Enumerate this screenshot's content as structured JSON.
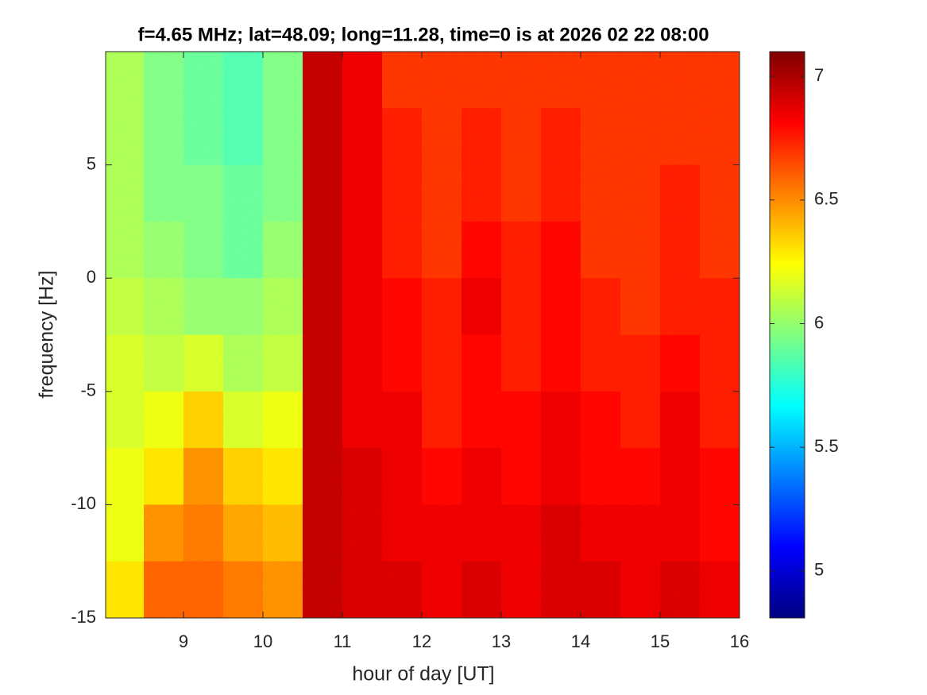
{
  "chart_data": {
    "type": "heatmap",
    "title": "f=4.65 MHz;  lat=48.09; long=11.28, time=0 is at 2026 02 22 08:00",
    "x_label": "hour of day [UT]",
    "y_label": "frequency [Hz]",
    "colormap": "jet",
    "x": [
      8.25,
      8.75,
      9.25,
      9.75,
      10.25,
      10.75,
      11.25,
      11.75,
      12.25,
      12.75,
      13.25,
      13.75,
      14.25,
      14.75,
      15.25,
      15.75
    ],
    "y": [
      8.75,
      6.25,
      3.75,
      1.25,
      -1.25,
      -3.75,
      -6.25,
      -8.75,
      -11.25,
      -13.75
    ],
    "z": [
      [
        6.05,
        5.95,
        5.9,
        5.85,
        5.95,
        6.95,
        6.85,
        6.7,
        6.7,
        6.7,
        6.7,
        6.7,
        6.7,
        6.7,
        6.7,
        6.7
      ],
      [
        6.05,
        5.95,
        5.9,
        5.85,
        5.95,
        6.95,
        6.85,
        6.75,
        6.7,
        6.75,
        6.7,
        6.75,
        6.7,
        6.7,
        6.7,
        6.7
      ],
      [
        6.05,
        5.95,
        5.95,
        5.9,
        5.95,
        6.95,
        6.85,
        6.75,
        6.7,
        6.75,
        6.7,
        6.75,
        6.7,
        6.7,
        6.75,
        6.7
      ],
      [
        6.05,
        6.0,
        5.95,
        5.9,
        6.0,
        6.95,
        6.85,
        6.75,
        6.7,
        6.8,
        6.75,
        6.8,
        6.7,
        6.7,
        6.75,
        6.7
      ],
      [
        6.1,
        6.05,
        6.0,
        6.0,
        6.05,
        6.95,
        6.85,
        6.8,
        6.75,
        6.85,
        6.75,
        6.8,
        6.75,
        6.7,
        6.75,
        6.75
      ],
      [
        6.15,
        6.1,
        6.15,
        6.05,
        6.1,
        6.95,
        6.85,
        6.8,
        6.75,
        6.8,
        6.75,
        6.8,
        6.75,
        6.75,
        6.8,
        6.75
      ],
      [
        6.15,
        6.2,
        6.35,
        6.15,
        6.2,
        6.95,
        6.85,
        6.85,
        6.75,
        6.8,
        6.8,
        6.85,
        6.8,
        6.75,
        6.85,
        6.75
      ],
      [
        6.2,
        6.3,
        6.5,
        6.35,
        6.3,
        6.95,
        6.9,
        6.85,
        6.8,
        6.85,
        6.8,
        6.85,
        6.8,
        6.8,
        6.85,
        6.8
      ],
      [
        6.2,
        6.5,
        6.55,
        6.45,
        6.4,
        6.95,
        6.9,
        6.85,
        6.85,
        6.85,
        6.85,
        6.9,
        6.85,
        6.85,
        6.85,
        6.8
      ],
      [
        6.3,
        6.6,
        6.6,
        6.55,
        6.5,
        6.95,
        6.9,
        6.9,
        6.85,
        6.9,
        6.85,
        6.9,
        6.9,
        6.85,
        6.9,
        6.85
      ]
    ],
    "cell_width": 0.5,
    "cell_height": 2.5,
    "xlim": [
      8.02,
      16
    ],
    "xticks": [
      9,
      10,
      11,
      12,
      13,
      14,
      15,
      16
    ],
    "ylim": [
      -15,
      10
    ],
    "yticks": [
      -15,
      -10,
      -5,
      0,
      5
    ],
    "clim": [
      4.81,
      7.1
    ],
    "cticks": [
      5,
      5.5,
      6,
      6.5,
      7
    ]
  }
}
